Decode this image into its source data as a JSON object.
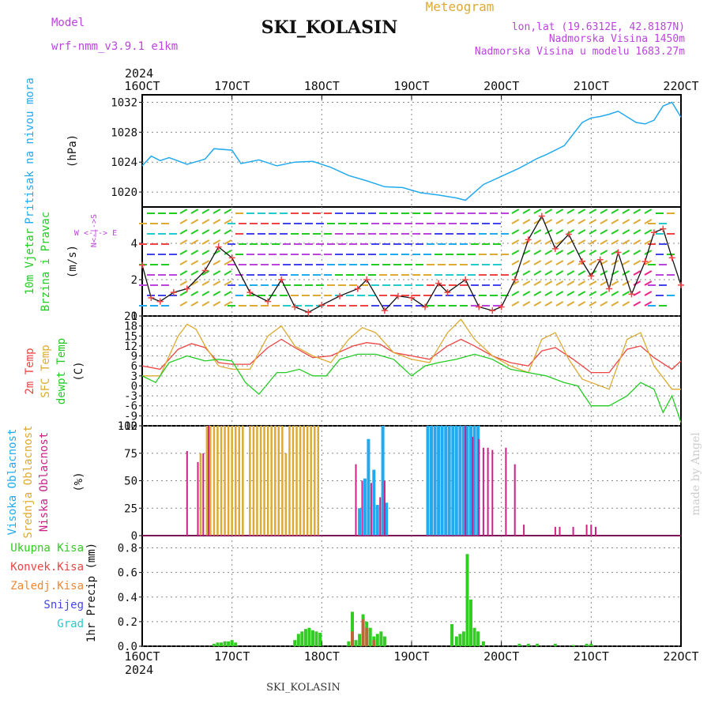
{
  "header": {
    "model_label": "Model",
    "model_name": "wrf-nmm_v3.9.1 e1km",
    "title": "SKI_KOLASIN",
    "subtitle": "Meteogram",
    "lonlat": "lon,lat (19.6312E, 42.8187N)",
    "elevation": "Nadmorska Visina 1450m",
    "model_elevation": "Nadmorska Visina u modelu 1683.27m",
    "year_top": "2024",
    "year_bottom": "2024",
    "footer_station": "SKI_KOLASIN",
    "credit": "made by Angel"
  },
  "colors": {
    "pressure": "#22aaee",
    "temp2m": "#ee4444",
    "sfc": "#ddaa33",
    "dewpt": "#22cc22",
    "high": "#22aaee",
    "mid": "#ddaa33",
    "low": "#cc2288",
    "precip": "#33cc22",
    "conv": "#ee4444",
    "frozen": "#ee8833",
    "snow": "#4444ee",
    "hail": "#22cccc",
    "wind_label": "#22cc22",
    "purple": "#bb44dd",
    "windspeed": "#ee4444"
  },
  "chart_data": [
    {
      "type": "line",
      "panel": "pressure",
      "ylabel_lines": [
        "Pritisak na nivou mora",
        "(hPa)"
      ],
      "ylim": [
        1018,
        1033
      ],
      "yticks": [
        1020,
        1024,
        1028,
        1032
      ],
      "x_ticks": [
        "16OCT",
        "17OCT",
        "18OCT",
        "19OCT",
        "20OCT",
        "21OCT",
        "22OCT"
      ],
      "x_range_days": [
        16,
        22
      ],
      "series": [
        {
          "x": [
            16.0,
            16.1,
            16.2,
            16.3,
            16.5,
            16.7,
            16.8,
            17.0,
            17.1,
            17.3,
            17.5,
            17.7,
            17.9,
            18.1,
            18.3,
            18.5,
            18.7,
            18.9,
            19.1,
            19.3,
            19.5,
            19.6,
            19.8,
            20.0,
            20.2,
            20.4,
            20.5,
            20.7,
            20.9,
            21.0,
            21.1,
            21.2,
            21.3,
            21.5,
            21.6,
            21.7,
            21.8,
            21.9,
            22.0
          ],
          "values": [
            1023.5,
            1024.8,
            1024.2,
            1024.6,
            1023.7,
            1024.4,
            1025.8,
            1025.6,
            1023.8,
            1024.3,
            1023.5,
            1024.0,
            1024.1,
            1023.3,
            1022.2,
            1021.5,
            1020.7,
            1020.6,
            1019.9,
            1019.6,
            1019.2,
            1018.9,
            1021.0,
            1022.1,
            1023.2,
            1024.5,
            1025.0,
            1026.2,
            1029.3,
            1029.9,
            1030.1,
            1030.4,
            1030.8,
            1029.3,
            1029.1,
            1029.6,
            1031.5,
            1032.0,
            1030.0
          ]
        }
      ]
    },
    {
      "type": "line",
      "panel": "wind",
      "ylabel_lines": [
        "10m Vjetar",
        "Brzina i Pravac",
        "(m/s)"
      ],
      "ylim": [
        0,
        6
      ],
      "yticks": [
        0,
        2,
        4
      ],
      "direction_legend": "W <-|-> E",
      "direction_legend_vertical": "N<-|->S",
      "series": [
        {
          "x": [
            16.0,
            16.1,
            16.2,
            16.35,
            16.5,
            16.7,
            16.85,
            17.0,
            17.2,
            17.4,
            17.55,
            17.7,
            17.85,
            18.0,
            18.2,
            18.4,
            18.5,
            18.7,
            18.85,
            19.0,
            19.15,
            19.3,
            19.4,
            19.6,
            19.75,
            19.9,
            20.0,
            20.15,
            20.3,
            20.45,
            20.6,
            20.75,
            20.9,
            21.0,
            21.1,
            21.2,
            21.3,
            21.45,
            21.6,
            21.7,
            21.8,
            21.9,
            22.0
          ],
          "values": [
            2.8,
            1.0,
            0.8,
            1.3,
            1.5,
            2.5,
            3.8,
            3.2,
            1.3,
            0.8,
            2.0,
            0.5,
            0.2,
            0.6,
            1.1,
            1.5,
            2.0,
            0.3,
            1.1,
            1.0,
            0.5,
            1.8,
            1.3,
            2.0,
            0.5,
            0.3,
            0.5,
            2.0,
            4.2,
            5.5,
            3.7,
            4.5,
            3.0,
            2.2,
            3.1,
            1.5,
            3.5,
            1.2,
            3.0,
            4.6,
            4.8,
            3.2,
            1.7
          ]
        }
      ]
    },
    {
      "type": "line",
      "panel": "temperature",
      "ylabel_lines": [
        "2m Temp",
        "SFC Temp",
        "dewpt Temp",
        "(C)"
      ],
      "ylim": [
        -12,
        21
      ],
      "yticks": [
        -12,
        -9,
        -6,
        -3,
        0,
        3,
        6,
        9,
        12,
        15,
        18,
        21
      ],
      "series": [
        {
          "name": "2m Temp",
          "x": [
            16.0,
            16.2,
            16.4,
            16.55,
            16.7,
            16.85,
            17.0,
            17.2,
            17.4,
            17.55,
            17.7,
            17.9,
            18.1,
            18.35,
            18.5,
            18.65,
            18.8,
            19.0,
            19.2,
            19.4,
            19.55,
            19.7,
            19.9,
            20.1,
            20.3,
            20.45,
            20.6,
            20.8,
            21.0,
            21.2,
            21.4,
            21.55,
            21.7,
            21.9,
            22.0
          ],
          "values": [
            6.0,
            5.0,
            11.0,
            12.7,
            11.5,
            7.0,
            6.5,
            6.5,
            11.5,
            14.0,
            11.5,
            8.5,
            9.0,
            12.0,
            13.0,
            12.5,
            10.0,
            9.0,
            8.0,
            12.0,
            14.0,
            12.0,
            9.0,
            7.0,
            6.0,
            10.5,
            11.5,
            8.0,
            4.0,
            4.0,
            11.0,
            12.0,
            8.5,
            5.0,
            7.5
          ]
        },
        {
          "name": "SFC Temp",
          "x": [
            16.0,
            16.2,
            16.4,
            16.5,
            16.6,
            16.7,
            16.85,
            17.0,
            17.2,
            17.4,
            17.55,
            17.7,
            17.9,
            18.1,
            18.3,
            18.45,
            18.6,
            18.8,
            19.0,
            19.2,
            19.4,
            19.55,
            19.7,
            19.9,
            20.1,
            20.3,
            20.45,
            20.6,
            20.75,
            20.9,
            21.0,
            21.2,
            21.4,
            21.55,
            21.7,
            21.9,
            22.0
          ],
          "values": [
            3.0,
            3.0,
            15.0,
            18.5,
            17.0,
            12.0,
            6.0,
            5.0,
            5.0,
            15.0,
            18.0,
            12.0,
            9.0,
            7.0,
            14.0,
            17.5,
            16.0,
            10.0,
            8.0,
            7.0,
            16.0,
            20.0,
            14.0,
            9.0,
            6.0,
            4.0,
            14.0,
            16.0,
            8.0,
            2.0,
            1.0,
            -1.0,
            14.0,
            16.0,
            6.0,
            -1.0,
            -1.0
          ]
        },
        {
          "name": "dewpt Temp",
          "x": [
            16.0,
            16.15,
            16.3,
            16.5,
            16.7,
            16.85,
            17.0,
            17.15,
            17.3,
            17.5,
            17.6,
            17.75,
            17.9,
            18.05,
            18.2,
            18.4,
            18.6,
            18.8,
            19.0,
            19.15,
            19.3,
            19.5,
            19.7,
            19.9,
            20.1,
            20.3,
            20.5,
            20.7,
            20.85,
            21.0,
            21.2,
            21.4,
            21.55,
            21.7,
            21.8,
            21.9,
            22.0
          ],
          "values": [
            3.0,
            1.0,
            7.0,
            9.0,
            7.5,
            8.0,
            7.5,
            1.0,
            -2.5,
            4.0,
            4.0,
            5.0,
            3.0,
            3.0,
            8.0,
            9.5,
            9.5,
            8.0,
            3.0,
            6.0,
            7.0,
            8.0,
            9.5,
            8.0,
            5.0,
            4.0,
            3.0,
            1.0,
            0.0,
            -6.0,
            -6.0,
            -3.0,
            1.0,
            -1.0,
            -8.0,
            -3.0,
            -11.0
          ]
        }
      ]
    },
    {
      "type": "bar",
      "panel": "cloud",
      "ylabel_lines": [
        "Visoka Oblacnost",
        "Srednja Oblacnost",
        "Niska Oblacnost",
        "(%)"
      ],
      "ylim": [
        0,
        100
      ],
      "yticks": [
        0,
        25,
        50,
        75,
        100
      ],
      "series": [
        {
          "name": "Visoka Oblacnost",
          "x": [
            18.42,
            18.48,
            18.52,
            18.58,
            18.62,
            18.68,
            18.72,
            19.18,
            19.22,
            19.26,
            19.3,
            19.34,
            19.38,
            19.42,
            19.46,
            19.5,
            19.54,
            19.58,
            19.62,
            19.66,
            19.7,
            19.74
          ],
          "values": [
            25,
            52,
            88,
            60,
            28,
            100,
            30,
            100,
            100,
            100,
            100,
            100,
            100,
            100,
            100,
            100,
            100,
            100,
            100,
            100,
            100,
            100
          ]
        },
        {
          "name": "Srednja Oblacnost",
          "x": [
            16.65,
            16.72,
            16.76,
            16.8,
            16.84,
            16.88,
            16.92,
            16.96,
            17.0,
            17.04,
            17.08,
            17.12,
            17.2,
            17.24,
            17.28,
            17.32,
            17.36,
            17.4,
            17.44,
            17.48,
            17.52,
            17.56,
            17.6,
            17.64,
            17.68,
            17.72,
            17.76,
            17.8,
            17.84,
            17.88,
            17.92,
            17.96
          ],
          "values": [
            75,
            100,
            100,
            100,
            100,
            100,
            100,
            100,
            100,
            100,
            100,
            100,
            100,
            100,
            100,
            100,
            100,
            100,
            100,
            100,
            100,
            100,
            75,
            100,
            100,
            100,
            100,
            100,
            100,
            100,
            100,
            100
          ]
        },
        {
          "name": "Niska Oblacnost",
          "x": [
            16.5,
            16.62,
            16.68,
            16.74,
            18.38,
            18.45,
            18.55,
            18.65,
            18.7,
            19.6,
            19.68,
            19.75,
            19.8,
            19.85,
            19.9,
            20.05,
            20.15,
            20.25,
            20.6,
            20.65,
            20.8,
            20.95,
            21.0,
            21.05
          ],
          "values": [
            77,
            67,
            75,
            100,
            65,
            50,
            48,
            35,
            50,
            100,
            90,
            88,
            80,
            80,
            78,
            80,
            65,
            10,
            8,
            8,
            8,
            10,
            10,
            8
          ]
        }
      ]
    },
    {
      "type": "bar",
      "panel": "precip",
      "ylabel_lines": [
        "1hr Precip (mm)"
      ],
      "legend": [
        "Ukupna Kisa",
        "Konvek.Kisa",
        "Zaledj.Kisa",
        "Snijeg",
        "Grad"
      ],
      "ylim": [
        0,
        0.9
      ],
      "yticks": [
        0,
        0.2,
        0.4,
        0.6,
        0.8
      ],
      "series": [
        {
          "name": "Ukupna Kisa",
          "x": [
            16.8,
            16.84,
            16.88,
            16.92,
            16.96,
            17.0,
            17.04,
            17.7,
            17.74,
            17.78,
            17.82,
            17.86,
            17.9,
            17.94,
            17.98,
            18.3,
            18.34,
            18.38,
            18.42,
            18.46,
            18.5,
            18.54,
            18.58,
            18.62,
            18.66,
            18.7,
            19.45,
            19.5,
            19.54,
            19.58,
            19.62,
            19.66,
            19.7,
            19.74,
            19.8,
            20.2,
            20.3,
            20.4,
            20.6,
            20.8,
            20.95,
            21.0
          ],
          "values": [
            0.02,
            0.03,
            0.03,
            0.04,
            0.04,
            0.05,
            0.03,
            0.05,
            0.1,
            0.12,
            0.14,
            0.15,
            0.13,
            0.12,
            0.11,
            0.04,
            0.28,
            0.05,
            0.1,
            0.26,
            0.2,
            0.15,
            0.08,
            0.1,
            0.12,
            0.08,
            0.18,
            0.08,
            0.1,
            0.12,
            0.75,
            0.38,
            0.15,
            0.12,
            0.04,
            0.02,
            0.02,
            0.02,
            0.02,
            0.01,
            0.02,
            0.02
          ]
        },
        {
          "name": "Konvek.Kisa",
          "x": [
            18.34,
            18.46,
            18.5,
            18.58
          ],
          "values": [
            0.12,
            0.22,
            0.15,
            0.05
          ]
        }
      ]
    }
  ]
}
